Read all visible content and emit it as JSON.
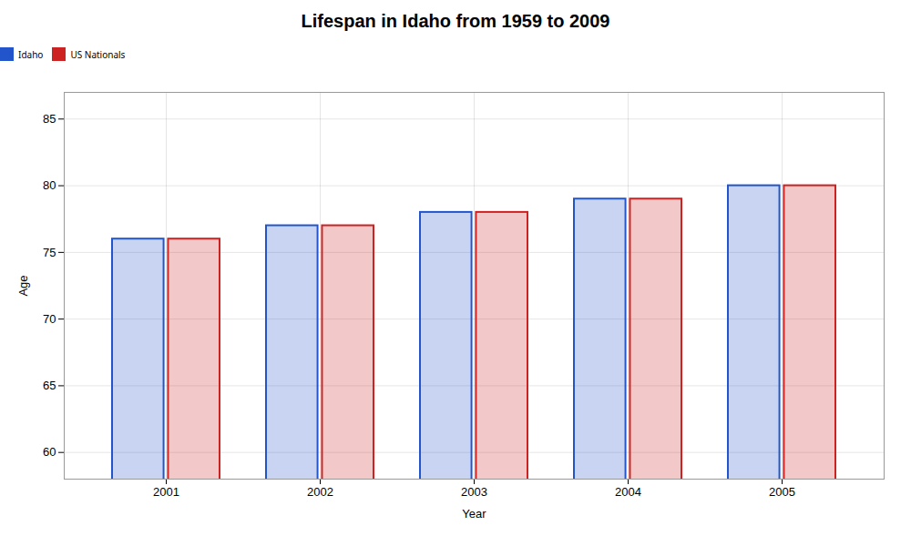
{
  "chart_data": {
    "type": "bar",
    "title": "Lifespan in Idaho from 1959 to 2009",
    "xlabel": "Year",
    "ylabel": "Age",
    "categories": [
      "2001",
      "2002",
      "2003",
      "2004",
      "2005"
    ],
    "series": [
      {
        "name": "Idaho",
        "color": "#2255cc",
        "values": [
          76,
          77,
          78,
          79,
          80
        ]
      },
      {
        "name": "US Nationals",
        "color": "#cc2222",
        "values": [
          76,
          77,
          78,
          79,
          80
        ]
      }
    ],
    "ylim": [
      58,
      87
    ],
    "yticks": [
      60,
      65,
      70,
      75,
      80,
      85
    ],
    "grid": true,
    "legend": "top"
  }
}
